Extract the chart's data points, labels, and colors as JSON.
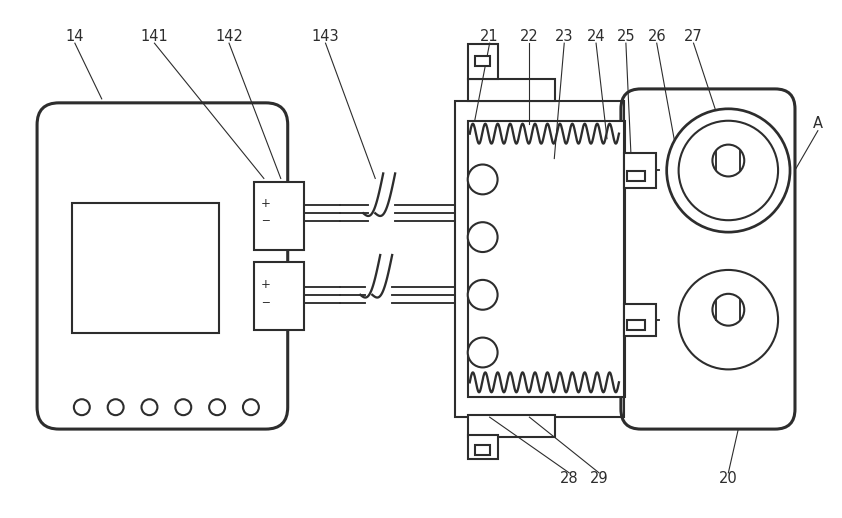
{
  "bg_color": "#ffffff",
  "lc": "#2d2d2d",
  "lw": 1.5,
  "lw_thin": 0.9,
  "lw_thick": 2.2,
  "fig_width": 8.42,
  "fig_height": 5.18,
  "font_size": 10.5
}
